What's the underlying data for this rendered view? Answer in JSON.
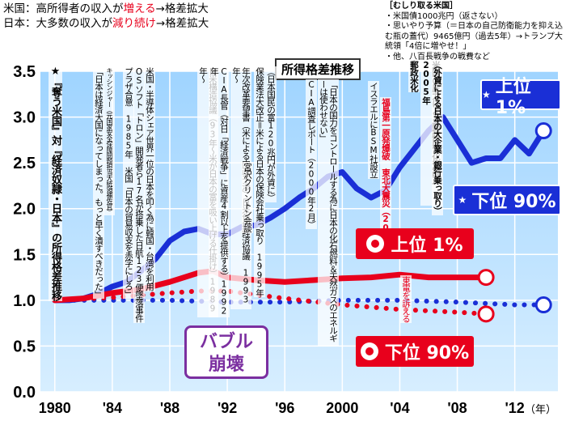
{
  "header": {
    "us_line_prefix": "米国：高所得者の収入が",
    "us_line_hl": "増える",
    "us_line_suffix": "→格差拡大",
    "jp_line_prefix": "日本：大多数の収入が",
    "jp_line_hl": "減り続け",
    "jp_line_suffix": "→格差拡大"
  },
  "sidebox": {
    "title": "［むしり取る米国］",
    "items": [
      "・米国債1000兆円（返さない）",
      "・思いやり予算（＝日本の自己防衛能力を抑え込む瓶の蓋代）9465億円（過去5年）→トランプ大統領「4倍に増やせ！」",
      "・他、八百長戦争の戦費など"
    ],
    "hl": "4倍に増やせ！"
  },
  "chart_data": {
    "type": "line",
    "title": "所得格差推移",
    "xlabel": "（年）",
    "ylabel": "",
    "xlim": [
      1979,
      2015
    ],
    "ylim": [
      0,
      3.5
    ],
    "x_ticks": [
      "1980",
      "'84",
      "'88",
      "'92",
      "'96",
      "2000",
      "'04",
      "'08",
      "'12"
    ],
    "x_tick_values": [
      1980,
      1984,
      1988,
      1992,
      1996,
      2000,
      2004,
      2008,
      2012
    ],
    "y_ticks": [
      "0.0",
      "0.5",
      "1.0",
      "1.5",
      "2.0",
      "2.5",
      "3.0",
      "3.5"
    ],
    "y_tick_values": [
      0.0,
      0.5,
      1.0,
      1.5,
      2.0,
      2.5,
      3.0,
      3.5
    ],
    "grid": true,
    "series": [
      {
        "name": "上位 1%",
        "country": "US",
        "color": "#1a2fd6",
        "style": "solid",
        "x": [
          1980,
          1981,
          1982,
          1983,
          1984,
          1985,
          1986,
          1987,
          1988,
          1989,
          1990,
          1991,
          1992,
          1993,
          1994,
          1995,
          1996,
          1997,
          1998,
          1999,
          2000,
          2001,
          2002,
          2003,
          2004,
          2005,
          2006,
          2007,
          2008,
          2009,
          2010,
          2011,
          2012,
          2013,
          2014
        ],
        "values": [
          1.0,
          1.0,
          1.02,
          1.07,
          1.15,
          1.2,
          1.32,
          1.45,
          1.65,
          1.75,
          1.78,
          1.72,
          1.72,
          1.8,
          1.82,
          1.9,
          2.0,
          2.12,
          2.22,
          2.35,
          2.4,
          2.22,
          2.12,
          2.2,
          2.45,
          2.65,
          2.85,
          3.0,
          2.75,
          2.5,
          2.55,
          2.55,
          2.75,
          2.6,
          2.85
        ]
      },
      {
        "name": "下位 90%",
        "country": "US",
        "color": "#1a2fd6",
        "style": "dotted",
        "x": [
          1980,
          1984,
          1988,
          1992,
          1996,
          2000,
          2004,
          2008,
          2012,
          2014
        ],
        "values": [
          1.0,
          1.0,
          1.0,
          0.98,
          0.98,
          1.0,
          1.0,
          0.98,
          0.95,
          0.95
        ]
      },
      {
        "name": "上位 1%",
        "country": "JP",
        "color": "#e8001c",
        "style": "solid",
        "x": [
          1980,
          1982,
          1984,
          1986,
          1988,
          1990,
          1991,
          1992,
          1994,
          1996,
          1998,
          2000,
          2002,
          2004,
          2006,
          2008,
          2010
        ],
        "values": [
          1.0,
          1.02,
          1.08,
          1.12,
          1.2,
          1.3,
          1.32,
          1.25,
          1.22,
          1.2,
          1.22,
          1.24,
          1.25,
          1.28,
          1.25,
          1.25,
          1.25
        ]
      },
      {
        "name": "下位 90%",
        "country": "JP",
        "color": "#e8001c",
        "style": "dotted",
        "x": [
          1980,
          1984,
          1988,
          1990,
          1992,
          1996,
          2000,
          2004,
          2008,
          2010
        ],
        "values": [
          1.0,
          1.03,
          1.08,
          1.1,
          1.1,
          1.02,
          0.95,
          0.9,
          0.87,
          0.85
        ]
      }
    ],
    "legend": [
      {
        "label": "上位 1%",
        "country": "US",
        "position": "right"
      },
      {
        "label": "下位 90%",
        "country": "US",
        "position": "right"
      },
      {
        "label": "上位 1%",
        "country": "JP",
        "position": "right"
      },
      {
        "label": "下位 90%",
        "country": "JP",
        "position": "right"
      }
    ]
  },
  "annotations": {
    "bubble_1": "バブル",
    "bubble_2": "崩壊",
    "notes": [
      "★『奪う米国』対『経済奴隷・日本』の所得格差推移",
      "「日本は経済大国になってしまった。もっと早く潰すべきだった」",
      "キッシンジャー（元国家安全保障問題担当大統領補佐官）",
      "プラザ合意 1985年 米国「日本の貿易収支を赤字にしろ」",
      "OSソフト「トロン」開発者ら17名が搭乗した日航123便墜落事件",
      "米国・半導体シェア世界一位の日本を叩く為に韓国・台湾を利用",
      "日米構造協議（93年～米が日本の富を吸い上げる仕掛け）1989年～",
      "CIA長官（対日「経済戦争」に資産4割以上を提供する）1992年",
      "年次改革要望書（米による内政干渉）日米包括経済協議 1993年～",
      "宮沢クリントン会談",
      "保険業法大改正＝米による日本の保険会社乗っ取り 1995年",
      "（日本国民の富120兆円が外資に）",
      "CIA調査レポート（2000年2月）",
      "「日本の国力をコントロールする為に日本の化石燃料＆天然ガスのエネルギーは使わせない」",
      "イスラエルにBSM社設立",
      "福島第一原発爆破 東北大震災（2011）",
      "東電を訴える",
      "郵政米化",
      "米国の圧力による郵政民営化法改正 2005年",
      "（外資による日本の大企業・銀行乗っ取り）"
    ]
  }
}
